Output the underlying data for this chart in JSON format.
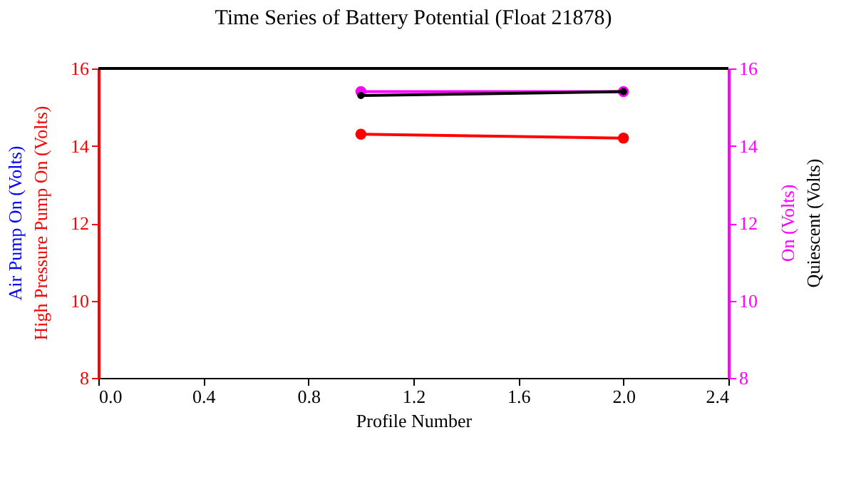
{
  "chart_data": {
    "type": "line",
    "title": "Time Series of Battery Potential (Float 21878)",
    "xlabel": "Profile Number",
    "ylabel": [
      "Air Pump On (Volts)",
      "High Pressure Pump On (Volts)"
    ],
    "y2label": [
      "On (Volts)",
      "Quiescent (Volts)"
    ],
    "x": [
      1,
      2
    ],
    "series": [
      {
        "color": "#0000ff",
        "axis": "y",
        "values": [
          null,
          null
        ]
      },
      {
        "color": "#ff0000",
        "axis": "y",
        "values": [
          14.3,
          14.2
        ]
      },
      {
        "color": "#ff00ff",
        "axis": "y2",
        "values": [
          15.4,
          15.4
        ]
      },
      {
        "color": "#000000",
        "axis": "y2",
        "values": [
          15.3,
          15.4
        ]
      }
    ],
    "xlim": [
      0,
      2.4
    ],
    "xticks": [
      {
        "value": 0,
        "label": "0.0"
      },
      0.4,
      0.8,
      1.2,
      1.6,
      {
        "value": 2,
        "label": "2.0"
      },
      2.4
    ],
    "ylim": [
      8,
      16
    ],
    "yticks": [
      8,
      10,
      12,
      14,
      16
    ],
    "y2lim": [
      8,
      16
    ],
    "y2ticks": [
      8,
      10,
      12,
      14,
      16
    ],
    "marker": "circle",
    "line_style": "solid"
  }
}
